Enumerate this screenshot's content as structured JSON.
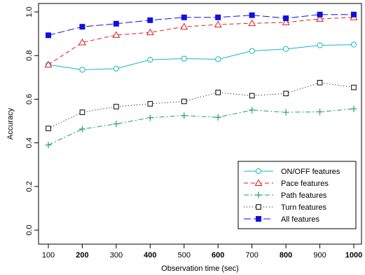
{
  "chart_data": {
    "type": "line",
    "xlabel": "Observation time (sec)",
    "ylabel": "Accuracy",
    "x": [
      100,
      200,
      300,
      400,
      500,
      600,
      700,
      800,
      900,
      1000
    ],
    "x_tick_labels": [
      "100",
      "200",
      "300",
      "400",
      "500",
      "600",
      "700",
      "800",
      "900",
      "1000"
    ],
    "x_tick_bold": [
      false,
      true,
      false,
      true,
      false,
      true,
      false,
      true,
      false,
      true
    ],
    "y_ticks": [
      0.0,
      0.2,
      0.4,
      0.6,
      0.8,
      1.0
    ],
    "y_tick_labels": [
      "0.0",
      "0.2",
      "0.4",
      "0.6",
      "0.8",
      "1.0"
    ],
    "xlim": [
      100,
      1000
    ],
    "ylim": [
      0.0,
      1.0
    ],
    "grid": false,
    "legend_position": "bottom-right",
    "series": [
      {
        "name": "ON/OFF features",
        "color": "#19b3cc",
        "marker": "circle-open",
        "line_style": "solid",
        "values": [
          0.758,
          0.735,
          0.74,
          0.781,
          0.786,
          0.783,
          0.821,
          0.83,
          0.847,
          0.85
        ]
      },
      {
        "name": "Pace features",
        "color": "#e31a1c",
        "marker": "triangle-open",
        "line_style": "dashed",
        "values": [
          0.758,
          0.86,
          0.894,
          0.906,
          0.932,
          0.942,
          0.948,
          0.952,
          0.968,
          0.975
        ]
      },
      {
        "name": "Path features",
        "color": "#1ea35a",
        "marker": "plus",
        "line_style": "dashdot",
        "values": [
          0.39,
          0.463,
          0.487,
          0.515,
          0.525,
          0.517,
          0.55,
          0.54,
          0.542,
          0.556
        ]
      },
      {
        "name": "Turn features",
        "color": "#000000",
        "marker": "square-open",
        "line_style": "dotted",
        "values": [
          0.466,
          0.54,
          0.566,
          0.579,
          0.59,
          0.631,
          0.616,
          0.626,
          0.676,
          0.654
        ]
      },
      {
        "name": "All features",
        "color": "#1010e0",
        "marker": "square-filled",
        "line_style": "longdash",
        "values": [
          0.893,
          0.932,
          0.946,
          0.962,
          0.975,
          0.975,
          0.985,
          0.971,
          0.988,
          0.988
        ]
      }
    ]
  }
}
